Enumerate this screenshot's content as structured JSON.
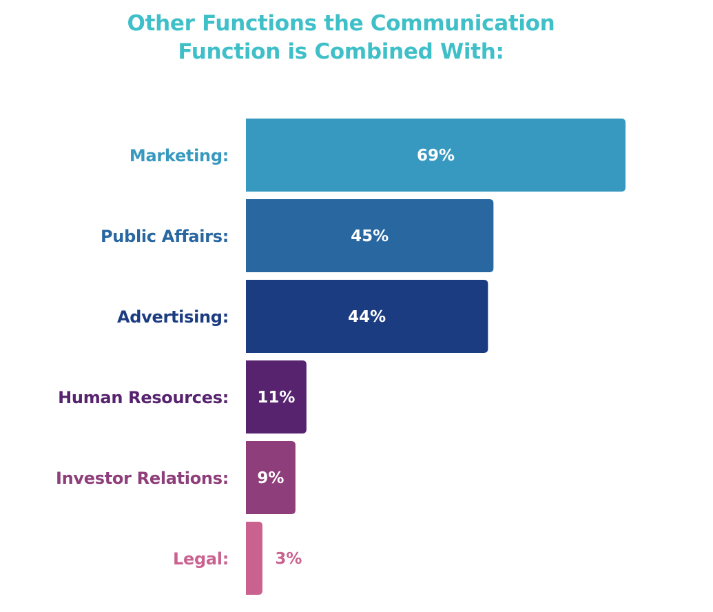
{
  "chart_data": {
    "type": "bar",
    "orientation": "horizontal",
    "title_lines": [
      "Other Functions the Communication",
      "Function is Combined With:"
    ],
    "categories": [
      "Marketing:",
      "Public Affairs:",
      "Advertising:",
      "Human Resources:",
      "Investor Relations:",
      "Legal:"
    ],
    "values": [
      69,
      45,
      44,
      11,
      9,
      3
    ],
    "value_labels": [
      "69%",
      "45%",
      "44%",
      "11%",
      "9%",
      "3%"
    ],
    "colors": [
      "#3799bf",
      "#2867a0",
      "#1b3c80",
      "#57236f",
      "#8e3e7a",
      "#c9628f"
    ],
    "title_color": "#3fbfc8",
    "xlim": [
      0,
      69
    ],
    "grid": false,
    "legend": "none"
  }
}
